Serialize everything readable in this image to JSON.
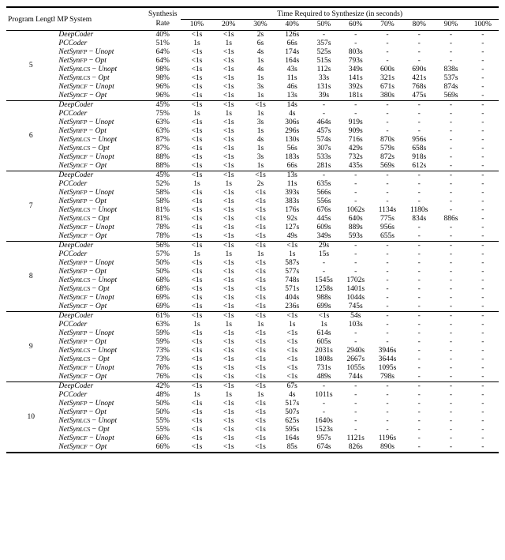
{
  "header": {
    "program_length": "Program Length",
    "mp_system": "MP System",
    "synthesis_rate_l1": "Synthesis",
    "synthesis_rate_l2": "Rate",
    "time_header": "Time Required to Synthesize (in seconds)",
    "pct_cols": [
      "10%",
      "20%",
      "30%",
      "40%",
      "50%",
      "60%",
      "70%",
      "80%",
      "90%",
      "100%"
    ]
  },
  "systems_html": [
    "<span class='italic'>DeepCoder</span>",
    "<span class='italic'>PCCoder</span>",
    "<span class='italic'>NetSyn</span><span class='sub'>FP</span> − <span class='italic'>Unopt</span>",
    "<span class='italic'>NetSyn</span><span class='sub'>FP</span> − <span class='italic'>Opt</span>",
    "<span class='italic'>NetSyn</span><span class='sub'>LCS</span> − <span class='italic'>Unopt</span>",
    "<span class='italic'>NetSyn</span><span class='sub'>LCS</span> − <span class='italic'>Opt</span>",
    "<span class='italic'>NetSyn</span><span class='sub'>CF</span> − <span class='italic'>Unopt</span>",
    "<span class='italic'>NetSyn</span><span class='sub'>CF</span> − <span class='italic'>Opt</span>"
  ],
  "blocks": [
    {
      "pl": "5",
      "rows": [
        {
          "sr": "40%",
          "t": [
            "<1s",
            "<1s",
            "2s",
            "126s",
            "-",
            "-",
            "-",
            "-",
            "-",
            "-"
          ]
        },
        {
          "sr": "51%",
          "t": [
            "1s",
            "1s",
            "6s",
            "66s",
            "357s",
            "-",
            "-",
            "-",
            "-",
            "-"
          ]
        },
        {
          "sr": "64%",
          "t": [
            "<1s",
            "<1s",
            "4s",
            "174s",
            "525s",
            "803s",
            "-",
            "-",
            "-",
            "-"
          ]
        },
        {
          "sr": "64%",
          "t": [
            "<1s",
            "<1s",
            "1s",
            "164s",
            "515s",
            "793s",
            "-",
            "-",
            "-",
            "-"
          ]
        },
        {
          "sr": "98%",
          "t": [
            "<1s",
            "<1s",
            "4s",
            "43s",
            "112s",
            "349s",
            "600s",
            "690s",
            "838s",
            "-"
          ]
        },
        {
          "sr": "98%",
          "t": [
            "<1s",
            "<1s",
            "1s",
            "11s",
            "33s",
            "141s",
            "321s",
            "421s",
            "537s",
            "-"
          ]
        },
        {
          "sr": "96%",
          "t": [
            "<1s",
            "<1s",
            "3s",
            "46s",
            "131s",
            "392s",
            "671s",
            "768s",
            "874s",
            "-"
          ]
        },
        {
          "sr": "96%",
          "t": [
            "<1s",
            "<1s",
            "1s",
            "13s",
            "39s",
            "181s",
            "380s",
            "475s",
            "569s",
            "-"
          ]
        }
      ]
    },
    {
      "pl": "6",
      "rows": [
        {
          "sr": "45%",
          "t": [
            "<1s",
            "<1s",
            "<1s",
            "14s",
            "-",
            "-",
            "-",
            "-",
            "-",
            "-"
          ]
        },
        {
          "sr": "75%",
          "t": [
            "1s",
            "1s",
            "1s",
            "4s",
            "-",
            "-",
            "-",
            "-",
            "-",
            "-"
          ]
        },
        {
          "sr": "63%",
          "t": [
            "<1s",
            "<1s",
            "3s",
            "306s",
            "464s",
            "919s",
            "-",
            "-",
            "-",
            "-"
          ]
        },
        {
          "sr": "63%",
          "t": [
            "<1s",
            "<1s",
            "1s",
            "296s",
            "457s",
            "909s",
            "-",
            "-",
            "-",
            "-"
          ]
        },
        {
          "sr": "87%",
          "t": [
            "<1s",
            "<1s",
            "4s",
            "130s",
            "574s",
            "716s",
            "870s",
            "956s",
            "-",
            "-"
          ]
        },
        {
          "sr": "87%",
          "t": [
            "<1s",
            "<1s",
            "1s",
            "56s",
            "307s",
            "429s",
            "579s",
            "658s",
            "-",
            "-"
          ]
        },
        {
          "sr": "88%",
          "t": [
            "<1s",
            "<1s",
            "3s",
            "183s",
            "533s",
            "732s",
            "872s",
            "918s",
            "-",
            "-"
          ]
        },
        {
          "sr": "88%",
          "t": [
            "<1s",
            "<1s",
            "1s",
            "66s",
            "281s",
            "435s",
            "569s",
            "612s",
            "-",
            "-"
          ]
        }
      ]
    },
    {
      "pl": "7",
      "rows": [
        {
          "sr": "45%",
          "t": [
            "<1s",
            "<1s",
            "<1s",
            "13s",
            "-",
            "-",
            "-",
            "-",
            "-",
            "-"
          ]
        },
        {
          "sr": "52%",
          "t": [
            "1s",
            "1s",
            "2s",
            "11s",
            "635s",
            "-",
            "-",
            "-",
            "-",
            "-"
          ]
        },
        {
          "sr": "58%",
          "t": [
            "<1s",
            "<1s",
            "<1s",
            "393s",
            "566s",
            "-",
            "-",
            "-",
            "-",
            "-"
          ]
        },
        {
          "sr": "58%",
          "t": [
            "<1s",
            "<1s",
            "<1s",
            "383s",
            "556s",
            "-",
            "-",
            "-",
            "-",
            "-"
          ]
        },
        {
          "sr": "81%",
          "t": [
            "<1s",
            "<1s",
            "<1s",
            "176s",
            "676s",
            "1062s",
            "1134s",
            "1180s",
            "-",
            "-"
          ]
        },
        {
          "sr": "81%",
          "t": [
            "<1s",
            "<1s",
            "<1s",
            "92s",
            "445s",
            "640s",
            "775s",
            "834s",
            "886s",
            "-"
          ]
        },
        {
          "sr": "78%",
          "t": [
            "<1s",
            "<1s",
            "<1s",
            "127s",
            "609s",
            "889s",
            "956s",
            "-",
            "-",
            "-"
          ]
        },
        {
          "sr": "78%",
          "t": [
            "<1s",
            "<1s",
            "<1s",
            "49s",
            "349s",
            "593s",
            "655s",
            "-",
            "-",
            "-"
          ]
        }
      ]
    },
    {
      "pl": "8",
      "rows": [
        {
          "sr": "56%",
          "t": [
            "<1s",
            "<1s",
            "<1s",
            "<1s",
            "29s",
            "-",
            "-",
            "-",
            "-",
            "-"
          ]
        },
        {
          "sr": "57%",
          "t": [
            "1s",
            "1s",
            "1s",
            "1s",
            "15s",
            "-",
            "-",
            "-",
            "-",
            "-"
          ]
        },
        {
          "sr": "50%",
          "t": [
            "<1s",
            "<1s",
            "<1s",
            "587s",
            "-",
            "-",
            "-",
            "-",
            "-",
            "-"
          ]
        },
        {
          "sr": "50%",
          "t": [
            "<1s",
            "<1s",
            "<1s",
            "577s",
            "-",
            "-",
            "-",
            "-",
            "-",
            "-"
          ]
        },
        {
          "sr": "68%",
          "t": [
            "<1s",
            "<1s",
            "<1s",
            "748s",
            "1545s",
            "1702s",
            "-",
            "-",
            "-",
            "-"
          ]
        },
        {
          "sr": "68%",
          "t": [
            "<1s",
            "<1s",
            "<1s",
            "571s",
            "1258s",
            "1401s",
            "-",
            "-",
            "-",
            "-"
          ]
        },
        {
          "sr": "69%",
          "t": [
            "<1s",
            "<1s",
            "<1s",
            "404s",
            "988s",
            "1044s",
            "-",
            "-",
            "-",
            "-"
          ]
        },
        {
          "sr": "69%",
          "t": [
            "<1s",
            "<1s",
            "<1s",
            "236s",
            "699s",
            "745s",
            "-",
            "-",
            "-",
            "-"
          ]
        }
      ]
    },
    {
      "pl": "9",
      "rows": [
        {
          "sr": "61%",
          "t": [
            "<1s",
            "<1s",
            "<1s",
            "<1s",
            "<1s",
            "54s",
            "-",
            "-",
            "-",
            "-"
          ]
        },
        {
          "sr": "63%",
          "t": [
            "1s",
            "1s",
            "1s",
            "1s",
            "1s",
            "103s",
            "-",
            "-",
            "-",
            "-"
          ]
        },
        {
          "sr": "59%",
          "t": [
            "<1s",
            "<1s",
            "<1s",
            "<1s",
            "614s",
            "-",
            "-",
            "-",
            "-",
            "-"
          ]
        },
        {
          "sr": "59%",
          "t": [
            "<1s",
            "<1s",
            "<1s",
            "<1s",
            "605s",
            "-",
            "-",
            "-",
            "-",
            "-"
          ]
        },
        {
          "sr": "73%",
          "t": [
            "<1s",
            "<1s",
            "<1s",
            "<1s",
            "2031s",
            "2940s",
            "3946s",
            "-",
            "-",
            "-"
          ]
        },
        {
          "sr": "73%",
          "t": [
            "<1s",
            "<1s",
            "<1s",
            "<1s",
            "1808s",
            "2667s",
            "3644s",
            "-",
            "-",
            "-"
          ]
        },
        {
          "sr": "76%",
          "t": [
            "<1s",
            "<1s",
            "<1s",
            "<1s",
            "731s",
            "1055s",
            "1095s",
            "-",
            "-",
            "-"
          ]
        },
        {
          "sr": "76%",
          "t": [
            "<1s",
            "<1s",
            "<1s",
            "<1s",
            "489s",
            "744s",
            "798s",
            "-",
            "-",
            "-"
          ]
        }
      ]
    },
    {
      "pl": "10",
      "rows": [
        {
          "sr": "42%",
          "t": [
            "<1s",
            "<1s",
            "<1s",
            "67s",
            "-",
            "-",
            "-",
            "-",
            "-",
            "-"
          ]
        },
        {
          "sr": "48%",
          "t": [
            "1s",
            "1s",
            "1s",
            "4s",
            "1011s",
            "-",
            "-",
            "-",
            "-",
            "-"
          ]
        },
        {
          "sr": "50%",
          "t": [
            "<1s",
            "<1s",
            "<1s",
            "517s",
            "-",
            "-",
            "-",
            "-",
            "-",
            "-"
          ]
        },
        {
          "sr": "50%",
          "t": [
            "<1s",
            "<1s",
            "<1s",
            "507s",
            "-",
            "-",
            "-",
            "-",
            "-",
            "-"
          ]
        },
        {
          "sr": "55%",
          "t": [
            "<1s",
            "<1s",
            "<1s",
            "625s",
            "1640s",
            "-",
            "-",
            "-",
            "-",
            "-"
          ]
        },
        {
          "sr": "55%",
          "t": [
            "<1s",
            "<1s",
            "<1s",
            "595s",
            "1523s",
            "-",
            "-",
            "-",
            "-",
            "-"
          ]
        },
        {
          "sr": "66%",
          "t": [
            "<1s",
            "<1s",
            "<1s",
            "164s",
            "957s",
            "1121s",
            "1196s",
            "-",
            "-",
            "-"
          ]
        },
        {
          "sr": "66%",
          "t": [
            "<1s",
            "<1s",
            "<1s",
            "85s",
            "674s",
            "826s",
            "890s",
            "-",
            "-",
            "-"
          ]
        }
      ]
    }
  ]
}
